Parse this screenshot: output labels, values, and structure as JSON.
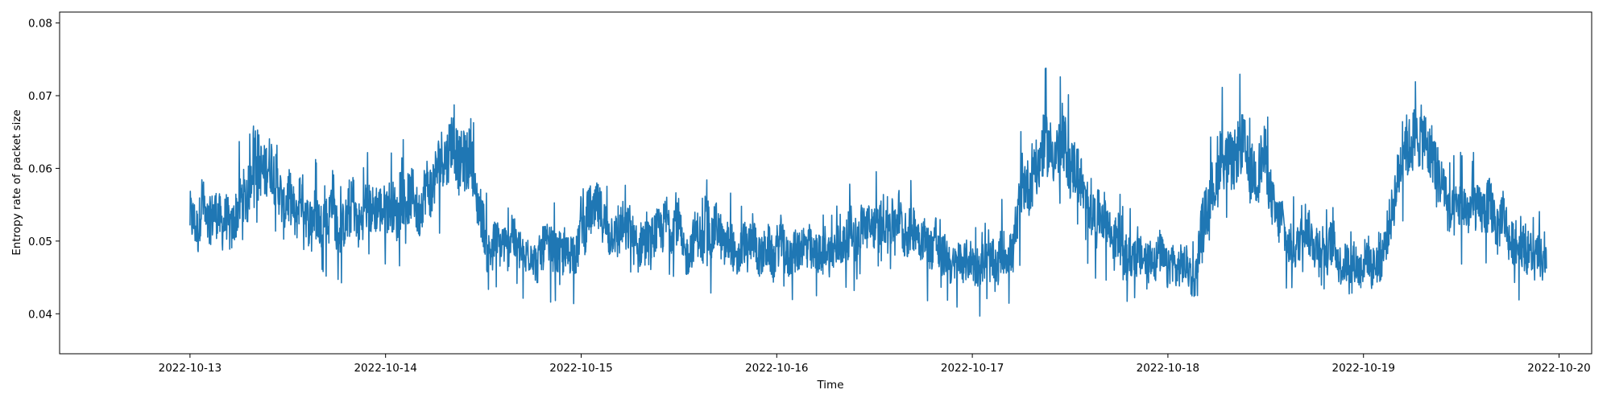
{
  "chart_data": {
    "type": "line",
    "title": "",
    "xlabel": "Time",
    "ylabel": "Entropy rate of packet size",
    "x_ticks": [
      "2022-10-13",
      "2022-10-14",
      "2022-10-15",
      "2022-10-16",
      "2022-10-17",
      "2022-10-18",
      "2022-10-19",
      "2022-10-20"
    ],
    "y_ticks": [
      "0.04",
      "0.05",
      "0.06",
      "0.07",
      "0.08"
    ],
    "xlim": [
      "2022-10-12 08:00",
      "2022-10-20 04:00"
    ],
    "ylim": [
      0.0345,
      0.0815
    ],
    "grid": false,
    "legend": "none",
    "series": [
      {
        "color": "#1f77b4",
        "samples_per_day": 48,
        "x_start": "2022-10-13 00:00",
        "values": [
          0.0535,
          0.0526,
          0.0512,
          0.0563,
          0.052,
          0.0528,
          0.054,
          0.0536,
          0.0519,
          0.0535,
          0.051,
          0.0532,
          0.0549,
          0.0565,
          0.0552,
          0.0597,
          0.063,
          0.0606,
          0.0591,
          0.0604,
          0.0607,
          0.0583,
          0.0571,
          0.0536,
          0.0565,
          0.0556,
          0.0524,
          0.0567,
          0.0552,
          0.0526,
          0.0534,
          0.0542,
          0.0519,
          0.0537,
          0.0524,
          0.0575,
          0.0505,
          0.0514,
          0.0526,
          0.0529,
          0.0561,
          0.0517,
          0.0526,
          0.0552,
          0.0544,
          0.0542,
          0.0548,
          0.0542,
          0.0544,
          0.055,
          0.0547,
          0.0528,
          0.0562,
          0.0554,
          0.0561,
          0.0566,
          0.0529,
          0.0556,
          0.058,
          0.057,
          0.0586,
          0.0605,
          0.0618,
          0.061,
          0.0641,
          0.0633,
          0.0603,
          0.0615,
          0.0599,
          0.0632,
          0.0561,
          0.0547,
          0.0525,
          0.0482,
          0.0488,
          0.0502,
          0.0493,
          0.0498,
          0.0487,
          0.052,
          0.0489,
          0.0488,
          0.0469,
          0.0484,
          0.0488,
          0.0464,
          0.0483,
          0.0494,
          0.0492,
          0.0489,
          0.0479,
          0.0485,
          0.0475,
          0.0483,
          0.0488,
          0.0478,
          0.0534,
          0.0512,
          0.0546,
          0.0532,
          0.0546,
          0.0536,
          0.0523,
          0.0505,
          0.0519,
          0.0498,
          0.0527,
          0.0509,
          0.0522,
          0.0496,
          0.0482,
          0.0504,
          0.0501,
          0.0497,
          0.0511,
          0.0513,
          0.0515,
          0.0533,
          0.0513,
          0.053,
          0.0526,
          0.0482,
          0.0479,
          0.0491,
          0.0511,
          0.051,
          0.0491,
          0.0533,
          0.0498,
          0.0524,
          0.0514,
          0.0488,
          0.0499,
          0.0499,
          0.0463,
          0.0484,
          0.0502,
          0.0482,
          0.0512,
          0.0492,
          0.0474,
          0.0486,
          0.0494,
          0.0473,
          0.0491,
          0.0504,
          0.0481,
          0.0474,
          0.0489,
          0.0483,
          0.0498,
          0.0492,
          0.0493,
          0.0476,
          0.0487,
          0.0474,
          0.0497,
          0.0479,
          0.0489,
          0.0493,
          0.0496,
          0.0492,
          0.052,
          0.0504,
          0.05,
          0.0526,
          0.0521,
          0.0517,
          0.0522,
          0.0515,
          0.0533,
          0.0528,
          0.0523,
          0.0528,
          0.0539,
          0.0509,
          0.0507,
          0.0518,
          0.0521,
          0.0505,
          0.0506,
          0.0493,
          0.0489,
          0.0511,
          0.0471,
          0.0482,
          0.0477,
          0.0463,
          0.0467,
          0.0476,
          0.047,
          0.0475,
          0.0474,
          0.0466,
          0.0466,
          0.0473,
          0.047,
          0.0475,
          0.0457,
          0.0488,
          0.0485,
          0.0481,
          0.0484,
          0.0521,
          0.0564,
          0.0584,
          0.057,
          0.0612,
          0.0592,
          0.0627,
          0.0635,
          0.0627,
          0.062,
          0.0624,
          0.0629,
          0.063,
          0.0597,
          0.0604,
          0.0592,
          0.0575,
          0.0538,
          0.0555,
          0.0531,
          0.0537,
          0.0538,
          0.0528,
          0.0508,
          0.05,
          0.0511,
          0.0473,
          0.0474,
          0.048,
          0.0479,
          0.0478,
          0.0477,
          0.0466,
          0.0484,
          0.0471,
          0.0486,
          0.0473,
          0.0457,
          0.0477,
          0.0457,
          0.0467,
          0.0468,
          0.0464,
          0.0445,
          0.0455,
          0.0513,
          0.0537,
          0.0548,
          0.0579,
          0.0571,
          0.0629,
          0.0607,
          0.0613,
          0.0602,
          0.0625,
          0.0633,
          0.0625,
          0.0589,
          0.0598,
          0.0585,
          0.0616,
          0.0617,
          0.0571,
          0.0544,
          0.0525,
          0.0535,
          0.0495,
          0.0494,
          0.049,
          0.0493,
          0.0525,
          0.0523,
          0.0504,
          0.0498,
          0.0494,
          0.0496,
          0.048,
          0.0497,
          0.0497,
          0.0468,
          0.0466,
          0.0471,
          0.0471,
          0.0473,
          0.0458,
          0.047,
          0.0485,
          0.0461,
          0.0469,
          0.047,
          0.0488,
          0.0516,
          0.054,
          0.0573,
          0.0603,
          0.0643,
          0.0624,
          0.0641,
          0.0641,
          0.0643,
          0.0641,
          0.0619,
          0.0622,
          0.0598,
          0.0579,
          0.0574,
          0.0534,
          0.0536,
          0.0547,
          0.0552,
          0.0546,
          0.0538,
          0.0557,
          0.0542,
          0.054,
          0.0543,
          0.0554,
          0.0538,
          0.0509,
          0.0543,
          0.0523,
          0.0494,
          0.05,
          0.0492,
          0.0496,
          0.0483,
          0.0488,
          0.0472,
          0.0486,
          0.0466
        ]
      }
    ]
  }
}
